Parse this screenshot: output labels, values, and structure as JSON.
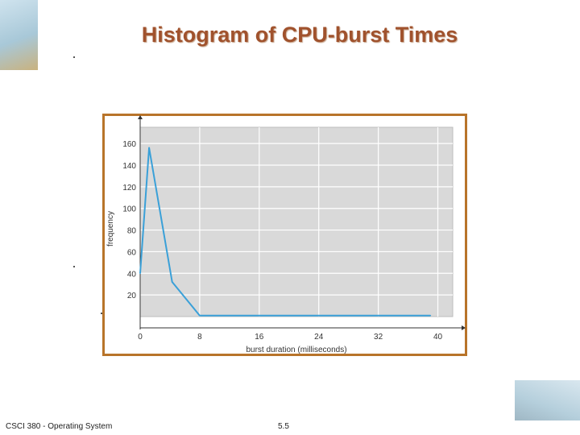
{
  "slide": {
    "title": "Histogram of CPU-burst Times",
    "footer_left": "CSCI 380 - Operating System",
    "footer_right": "5.5"
  },
  "chart_data": {
    "type": "line",
    "xlabel": "burst duration (milliseconds)",
    "ylabel": "frequency",
    "xlim": [
      0,
      42
    ],
    "ylim": [
      0,
      175
    ],
    "x_ticks": [
      0,
      8,
      16,
      24,
      32,
      40
    ],
    "y_ticks": [
      20,
      40,
      60,
      80,
      100,
      120,
      140,
      160
    ],
    "grid": true,
    "series": [
      {
        "color": "#3aa0d8",
        "points": [
          [
            0,
            40
          ],
          [
            1.2,
            156
          ],
          [
            4.3,
            32
          ],
          [
            8,
            1
          ],
          [
            39,
            1
          ]
        ]
      }
    ]
  }
}
